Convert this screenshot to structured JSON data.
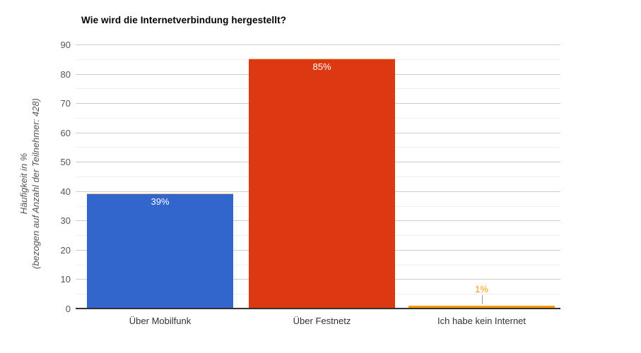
{
  "chart_data": {
    "type": "bar",
    "title": "Wie wird die Internetverbindung hergestellt?",
    "ylabel_line1": "Häufigkeit in %",
    "ylabel_line2": "(bezogen auf Anzahl der Teilnehmer: 428)",
    "xlabel": "",
    "categories": [
      "Über Mobilfunk",
      "Über Festnetz",
      "Ich habe kein Internet"
    ],
    "values": [
      39,
      85,
      1
    ],
    "value_labels": [
      "39%",
      "85%",
      "1%"
    ],
    "bar_colors": [
      "#3366cc",
      "#dc3912",
      "#ff9900"
    ],
    "ylim": [
      0,
      90
    ],
    "yticks": [
      0,
      10,
      20,
      30,
      40,
      50,
      60,
      70,
      80,
      90
    ],
    "minor_tick_interval": 5,
    "grid": true,
    "legend": "none"
  },
  "colors": {
    "background": "#ffffff",
    "title_text": "#000000",
    "axis_label_text": "#555555",
    "category_label_text": "#333333",
    "gridline_major": "#cccccc",
    "gridline_minor": "#efefef",
    "baseline": "#333333",
    "annotation_inside_text": "#ffffff",
    "annotation_outside_text": "#ff9900",
    "annotation_stem": "#999999",
    "bar_top_stroke": "#ecc28c"
  }
}
